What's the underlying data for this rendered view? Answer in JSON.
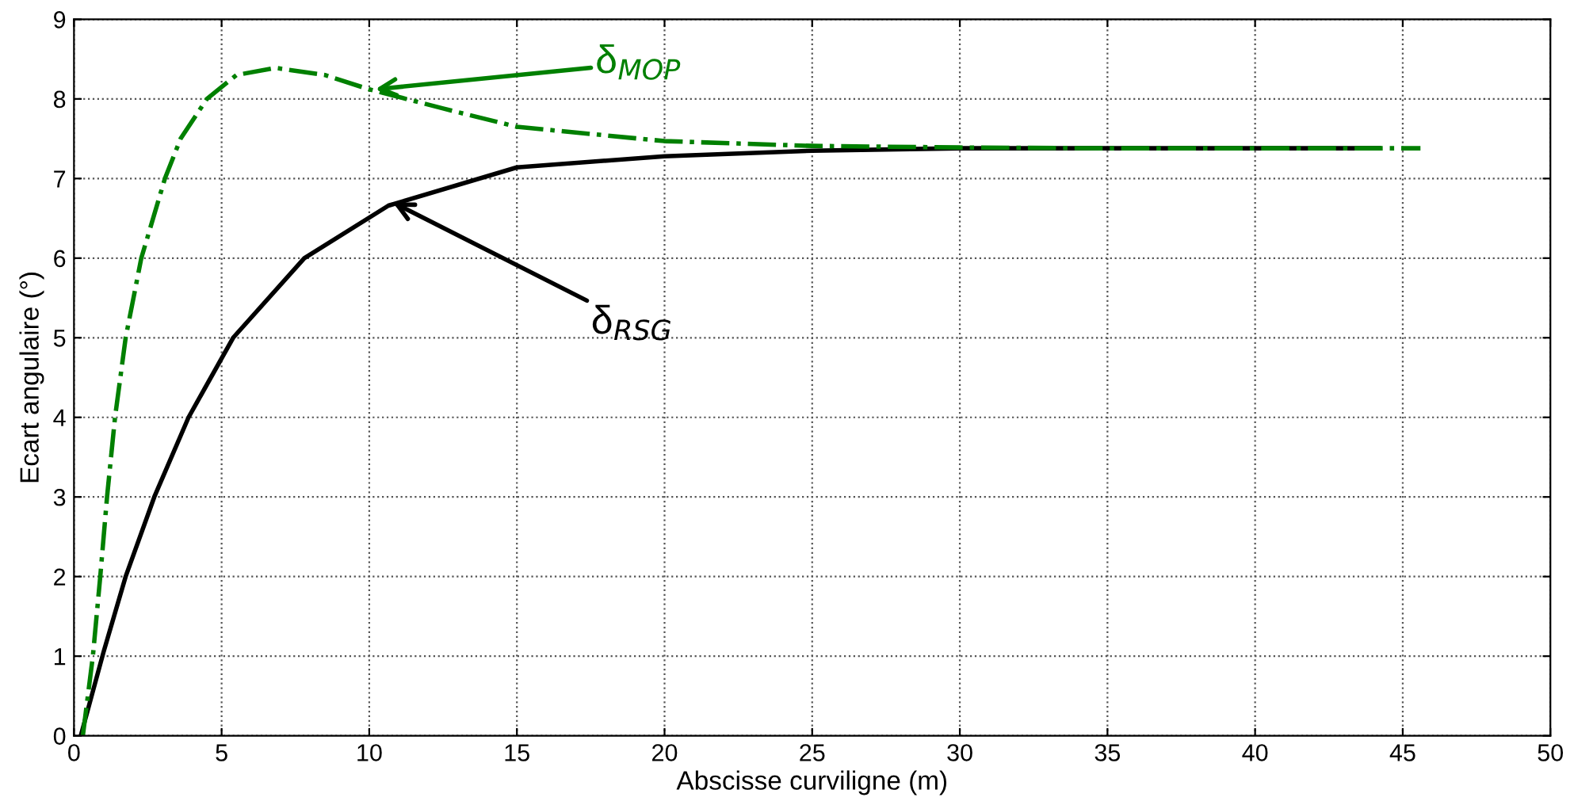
{
  "chart_data": {
    "type": "line",
    "xlabel": "Abscisse curviligne (m)",
    "ylabel": "Ecart angulaire (°)",
    "xlim": [
      0,
      50
    ],
    "xticks": [
      0,
      5,
      10,
      15,
      20,
      25,
      30,
      35,
      40,
      45,
      50
    ],
    "ylim": [
      0,
      9
    ],
    "yticks": [
      0,
      1,
      2,
      3,
      4,
      5,
      6,
      7,
      8,
      9
    ],
    "grid": true,
    "legend": false,
    "series": [
      {
        "color": "#000000",
        "line_style": "solid",
        "x": [
          0.23,
          1.0,
          1.75,
          2.72,
          3.88,
          5.39,
          7.8,
          10.65,
          15,
          20,
          25,
          30,
          35,
          40,
          44.2
        ],
        "values": [
          0,
          1.05,
          2,
          3,
          4,
          5,
          6,
          6.66,
          7.14,
          7.28,
          7.35,
          7.38,
          7.38,
          7.38,
          7.38
        ]
      },
      {
        "color": "#008000",
        "line_style": "dashdot",
        "x": [
          0.3,
          0.64,
          0.89,
          1.12,
          1.39,
          1.75,
          2.28,
          3.08,
          3.61,
          4.5,
          5.5,
          6.82,
          8.5,
          10,
          12.5,
          15,
          20,
          25,
          30,
          35,
          40,
          45.6
        ],
        "values": [
          0,
          1,
          2,
          3,
          4,
          5,
          6,
          7,
          7.5,
          8,
          8.3,
          8.39,
          8.3,
          8.12,
          7.88,
          7.65,
          7.47,
          7.41,
          7.39,
          7.38,
          7.38,
          7.38
        ]
      }
    ],
    "annotations": [
      {
        "text": "δ$_{MOP}$",
        "x": 10.2,
        "y": 8.12
      },
      {
        "text": "δ$_{RSG}$",
        "x": 10.8,
        "y": 6.7
      }
    ]
  }
}
